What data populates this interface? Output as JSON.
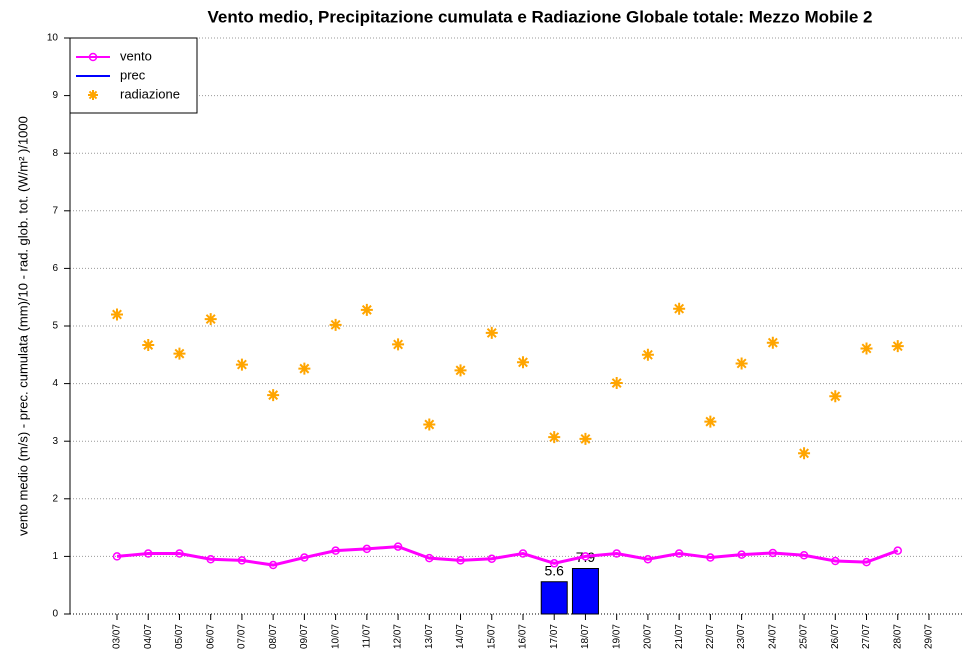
{
  "chart_data": {
    "type": "line",
    "title": "Vento medio, Precipitazione cumulata e Radiazione Globale totale: Mezzo Mobile 2",
    "y_label": "vento medio (m/s) - prec. cumulata (mm)/10 - rad. glob. tot. (W/m² )/1000",
    "categories": [
      "03/07",
      "04/07",
      "05/07",
      "06/07",
      "07/07",
      "08/07",
      "09/07",
      "10/07",
      "11/07",
      "12/07",
      "13/07",
      "14/07",
      "15/07",
      "16/07",
      "17/07",
      "18/07",
      "19/07",
      "20/07",
      "21/07",
      "22/07",
      "23/07",
      "24/07",
      "25/07",
      "26/07",
      "27/07",
      "28/07",
      "29/07"
    ],
    "series": [
      {
        "name": "vento",
        "color": "#ff00ff",
        "style": "line",
        "values": [
          1.0,
          1.05,
          1.05,
          0.95,
          0.93,
          0.85,
          0.98,
          1.1,
          1.13,
          1.17,
          0.97,
          0.93,
          0.96,
          1.05,
          0.88,
          1.0,
          1.05,
          0.95,
          1.05,
          0.98,
          1.03,
          1.06,
          1.02,
          0.92,
          0.9,
          1.1,
          null
        ]
      },
      {
        "name": "prec",
        "color": "#0000ff",
        "style": "bar",
        "values": [
          null,
          null,
          null,
          null,
          null,
          null,
          null,
          null,
          null,
          null,
          null,
          null,
          null,
          null,
          0.56,
          0.79,
          null,
          null,
          null,
          null,
          null,
          null,
          null,
          null,
          null,
          null,
          null
        ],
        "value_labels": [
          null,
          null,
          null,
          null,
          null,
          null,
          null,
          null,
          null,
          null,
          null,
          null,
          null,
          null,
          "5.6",
          "7.9",
          null,
          null,
          null,
          null,
          null,
          null,
          null,
          null,
          null,
          null,
          null
        ]
      },
      {
        "name": "radiazione",
        "color": "#ffa500",
        "style": "asterisk",
        "values": [
          5.2,
          4.67,
          4.52,
          5.12,
          4.33,
          3.8,
          4.26,
          5.02,
          5.28,
          4.68,
          3.29,
          4.23,
          4.88,
          4.37,
          3.07,
          3.04,
          4.01,
          4.5,
          5.3,
          3.34,
          4.35,
          4.71,
          2.79,
          3.78,
          4.61,
          4.65,
          null
        ]
      }
    ],
    "ylim": [
      0,
      10
    ],
    "yticks": [
      0,
      1,
      2,
      3,
      4,
      5,
      6,
      7,
      8,
      9,
      10
    ],
    "grid": true,
    "legend": "top-left"
  }
}
